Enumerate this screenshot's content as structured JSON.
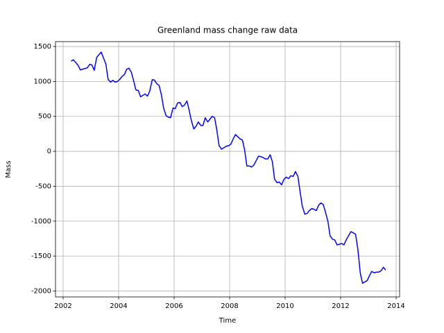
{
  "chart_data": {
    "type": "line",
    "title": "Greenland mass change raw data",
    "xlabel": "Time",
    "ylabel": "Mass",
    "color": "#0000ff",
    "grid": true,
    "xlim": [
      2001.725,
      2014.125
    ],
    "ylim": [
      -2085,
      1570
    ],
    "xticks": [
      2002,
      2004,
      2006,
      2008,
      2010,
      2012,
      2014
    ],
    "yticks": [
      -2000,
      -1500,
      -1000,
      -500,
      0,
      500,
      1000,
      1500
    ],
    "x": [
      2002.29,
      2002.37,
      2002.54,
      2002.62,
      2002.79,
      2002.87,
      2002.96,
      2003.04,
      2003.12,
      2003.21,
      2003.37,
      2003.54,
      2003.62,
      2003.71,
      2003.79,
      2003.87,
      2003.96,
      2004.04,
      2004.12,
      2004.21,
      2004.29,
      2004.37,
      2004.46,
      2004.54,
      2004.62,
      2004.71,
      2004.79,
      2004.87,
      2004.96,
      2005.04,
      2005.12,
      2005.21,
      2005.29,
      2005.37,
      2005.46,
      2005.54,
      2005.62,
      2005.71,
      2005.79,
      2005.87,
      2005.96,
      2006.04,
      2006.12,
      2006.21,
      2006.29,
      2006.37,
      2006.46,
      2006.54,
      2006.62,
      2006.71,
      2006.79,
      2006.87,
      2006.96,
      2007.04,
      2007.12,
      2007.21,
      2007.29,
      2007.37,
      2007.46,
      2007.54,
      2007.62,
      2007.71,
      2007.79,
      2007.87,
      2007.96,
      2008.04,
      2008.12,
      2008.21,
      2008.29,
      2008.37,
      2008.46,
      2008.54,
      2008.62,
      2008.71,
      2008.79,
      2008.87,
      2008.96,
      2009.04,
      2009.12,
      2009.21,
      2009.29,
      2009.37,
      2009.46,
      2009.54,
      2009.62,
      2009.71,
      2009.79,
      2009.87,
      2009.96,
      2010.04,
      2010.12,
      2010.21,
      2010.29,
      2010.37,
      2010.46,
      2010.54,
      2010.62,
      2010.71,
      2010.79,
      2010.87,
      2010.96,
      2011.04,
      2011.12,
      2011.21,
      2011.29,
      2011.37,
      2011.46,
      2011.54,
      2011.62,
      2011.71,
      2011.79,
      2011.87,
      2011.96,
      2012.04,
      2012.12,
      2012.21,
      2012.37,
      2012.46,
      2012.54,
      2012.62,
      2012.71,
      2012.79,
      2012.87,
      2012.96,
      2013.04,
      2013.12,
      2013.21,
      2013.29,
      2013.37,
      2013.46,
      2013.54,
      2013.62
    ],
    "values": [
      1290,
      1310,
      1230,
      1165,
      1185,
      1195,
      1245,
      1235,
      1160,
      1345,
      1420,
      1250,
      1030,
      990,
      1015,
      990,
      1000,
      1030,
      1070,
      1100,
      1175,
      1190,
      1130,
      1010,
      880,
      870,
      780,
      800,
      820,
      790,
      860,
      1025,
      1020,
      970,
      940,
      810,
      620,
      510,
      490,
      480,
      620,
      610,
      690,
      700,
      640,
      660,
      720,
      590,
      440,
      320,
      360,
      420,
      370,
      370,
      480,
      420,
      460,
      500,
      480,
      300,
      80,
      30,
      50,
      70,
      80,
      100,
      170,
      240,
      210,
      180,
      160,
      20,
      -210,
      -210,
      -225,
      -200,
      -130,
      -70,
      -75,
      -90,
      -110,
      -110,
      -50,
      -150,
      -400,
      -450,
      -440,
      -480,
      -400,
      -370,
      -390,
      -350,
      -360,
      -290,
      -360,
      -580,
      -790,
      -900,
      -890,
      -850,
      -820,
      -830,
      -850,
      -770,
      -740,
      -760,
      -880,
      -1000,
      -1210,
      -1260,
      -1270,
      -1340,
      -1330,
      -1320,
      -1340,
      -1260,
      -1150,
      -1170,
      -1190,
      -1400,
      -1750,
      -1890,
      -1870,
      -1850,
      -1780,
      -1720,
      -1740,
      -1730,
      -1730,
      -1710,
      -1660,
      -1700
    ]
  }
}
